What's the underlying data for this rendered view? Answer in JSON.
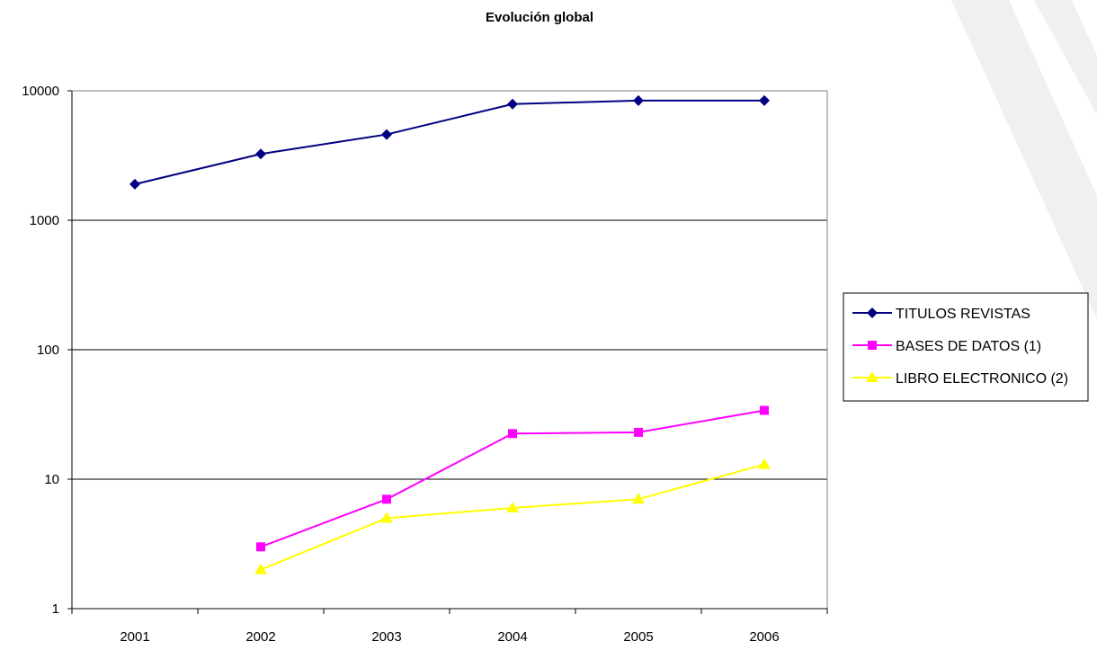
{
  "chart_data": {
    "type": "line",
    "title": "Evolución global",
    "xlabel": "",
    "ylabel": "",
    "yscale": "log",
    "ylim": [
      1,
      10000
    ],
    "categories": [
      "2001",
      "2002",
      "2003",
      "2004",
      "2005",
      "2006"
    ],
    "ytick_labels": [
      "1",
      "10",
      "100",
      "1000",
      "10000"
    ],
    "legend_position": "right",
    "grid": "horizontal",
    "series": [
      {
        "name": "TITULOS REVISTAS",
        "values": [
          1900,
          3250,
          4600,
          7900,
          8400,
          8400
        ],
        "color": "#000080",
        "marker": "diamond"
      },
      {
        "name": "BASES DE DATOS (1)",
        "values": [
          null,
          3,
          7,
          22.5,
          23,
          34
        ],
        "color": "#ff00ff",
        "marker": "square"
      },
      {
        "name": "LIBRO ELECTRONICO (2)",
        "values": [
          null,
          2,
          5,
          6,
          7,
          13
        ],
        "color": "#ffff00",
        "marker": "triangle"
      }
    ]
  }
}
